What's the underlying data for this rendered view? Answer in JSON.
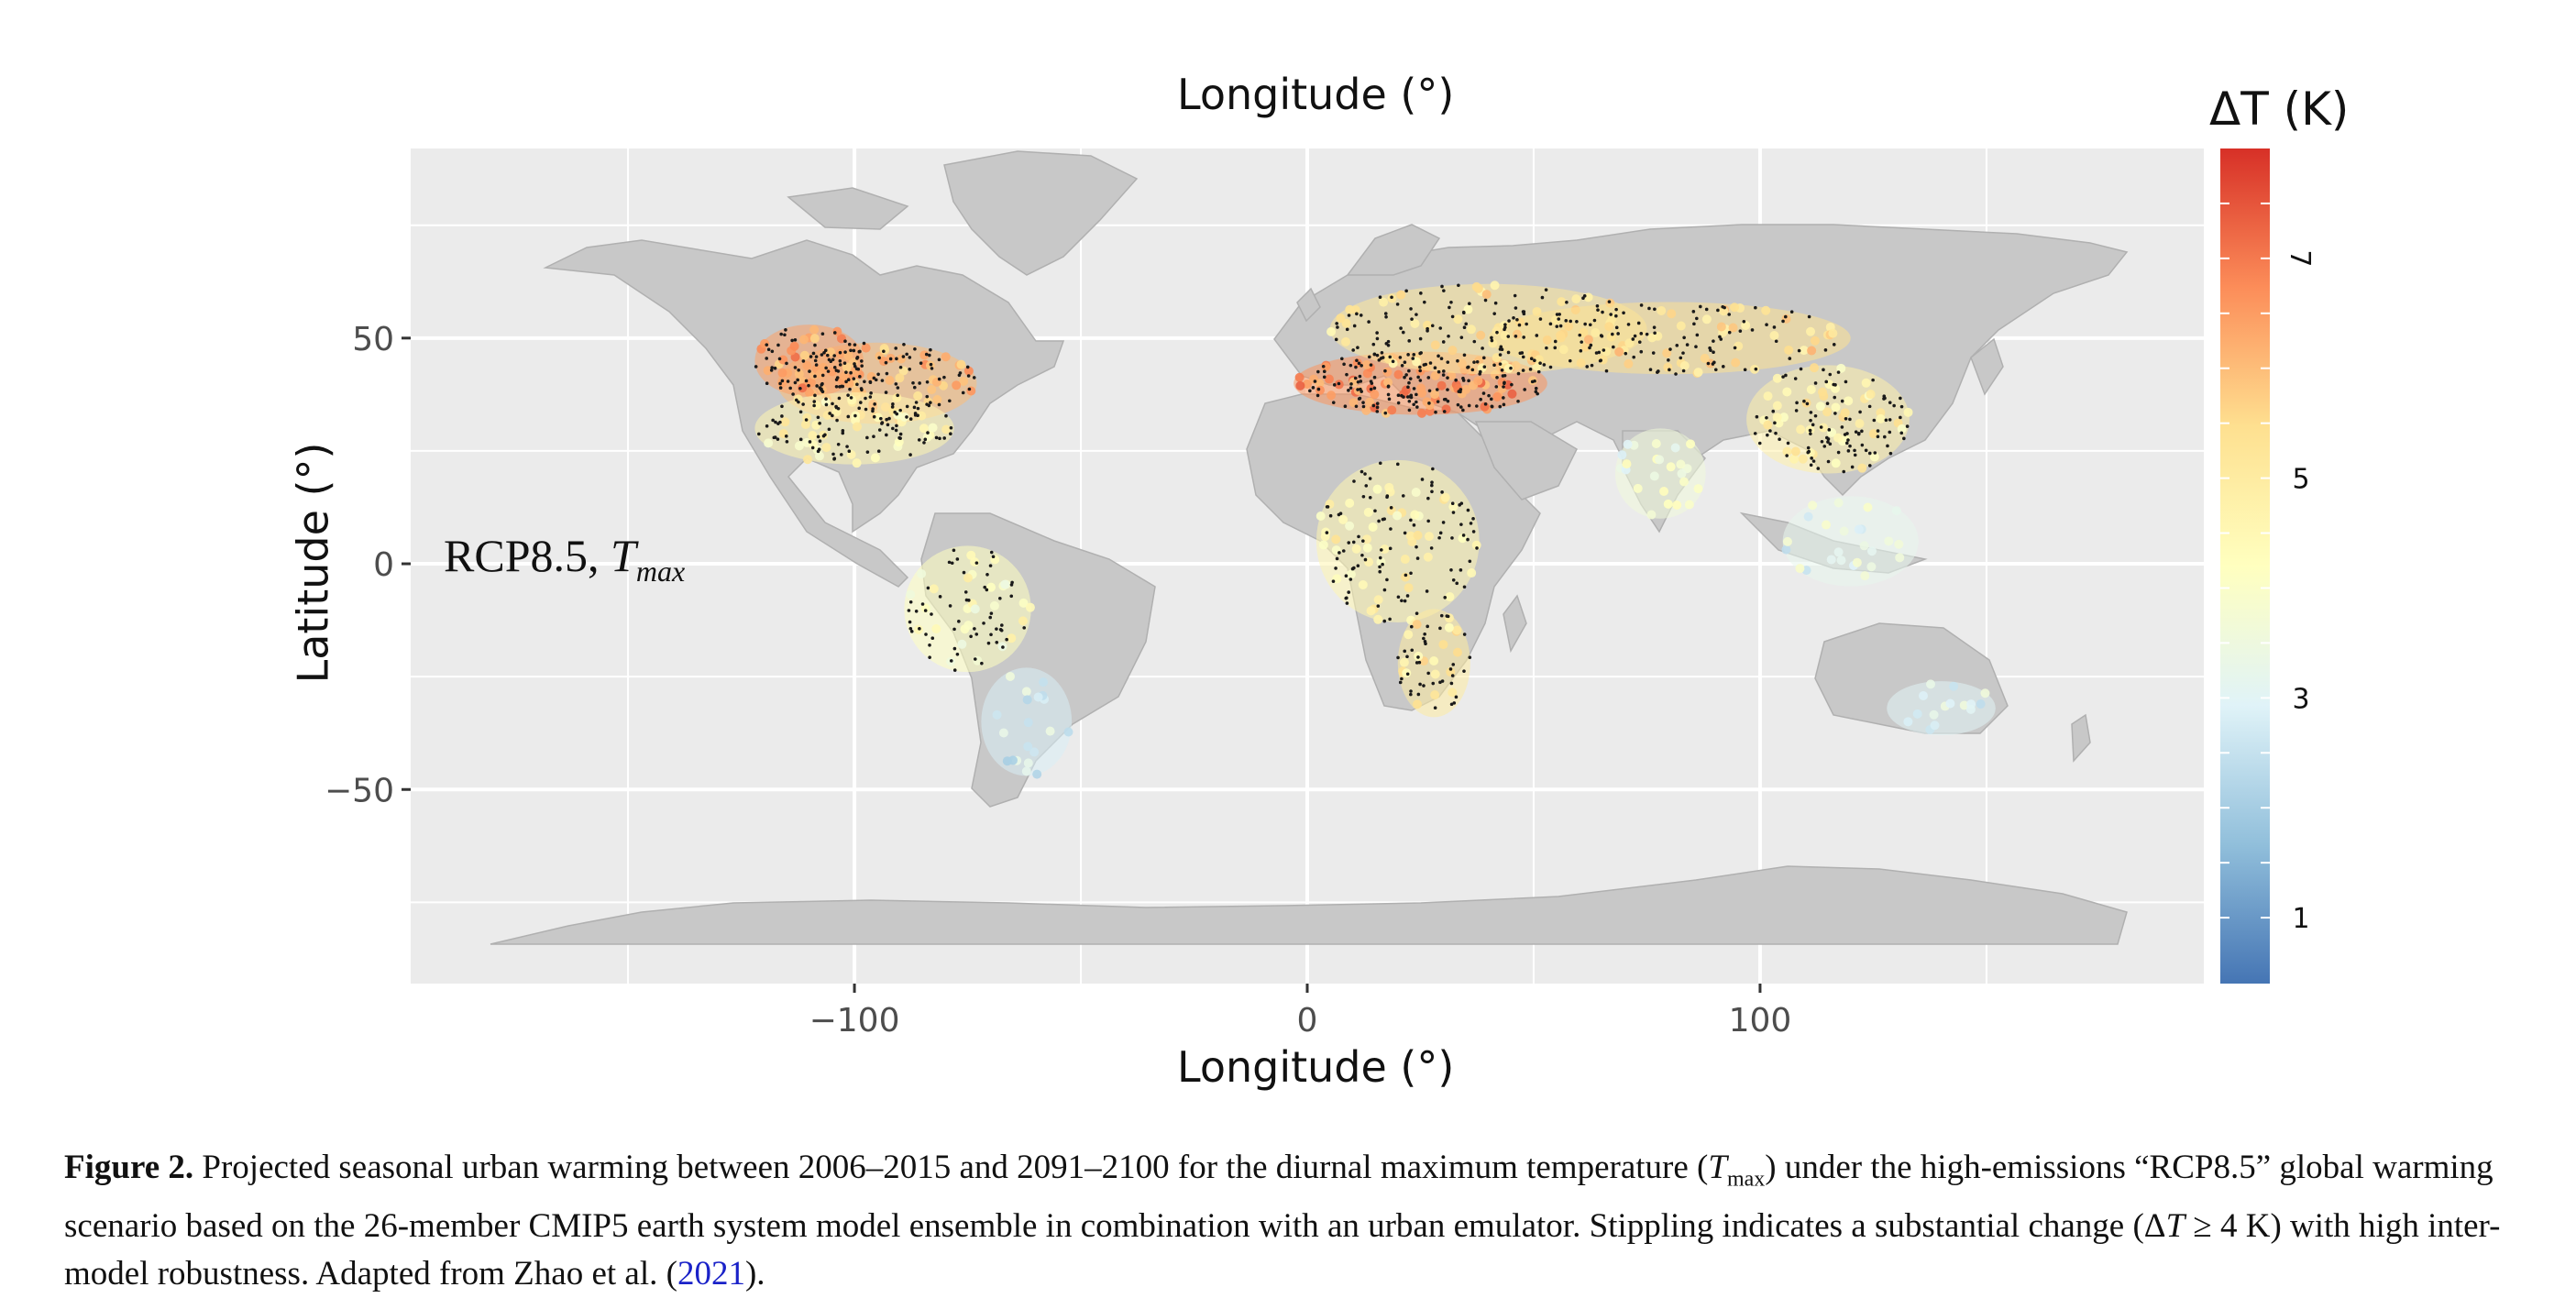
{
  "figure": {
    "top_axis_title": "Longitude (°)",
    "bottom_axis_title": "Longitude (°)",
    "y_axis_title": "Latitude (°)",
    "x_ticks": [
      {
        "value": -100,
        "label": "−100"
      },
      {
        "value": 0,
        "label": "0"
      },
      {
        "value": 100,
        "label": "100"
      }
    ],
    "y_ticks": [
      {
        "value": 50,
        "label": "50"
      },
      {
        "value": 0,
        "label": "0"
      },
      {
        "value": -50,
        "label": "−50"
      }
    ],
    "x_range": [
      -198,
      198
    ],
    "y_range": [
      -93,
      92
    ],
    "panel_label": {
      "scenario": "RCP8.5, ",
      "var": "T",
      "sub": "max"
    },
    "colorbar": {
      "title": "ΔT (K)",
      "range": [
        0.4,
        8.0
      ],
      "ticks": [
        {
          "value": 7,
          "label": "7"
        },
        {
          "value": 5,
          "label": "5"
        },
        {
          "value": 3,
          "label": "3"
        },
        {
          "value": 1,
          "label": "1"
        }
      ],
      "colors": [
        "#4575b4",
        "#91bfdb",
        "#e0f3f8",
        "#ffffbf",
        "#fee090",
        "#fc8d59",
        "#d73027"
      ]
    },
    "colors": {
      "panel_bg": "#ebebeb",
      "land": "#c8c8c8",
      "gridline": "#ffffff",
      "stipple": "#1a1a1a"
    }
  },
  "caption": {
    "label": "Figure 2.",
    "text1": " Projected seasonal urban warming between 2006–2015 and 2091–2100 for the diurnal maximum temperature (",
    "tvar": "T",
    "tsub": "max",
    "text2": ") under the high-emissions “RCP8.5” global warming scenario based on the 26-member CMIP5 earth system model ensemble in combination with an urban emulator. Stippling indicates a substantial change (Δ",
    "tvar2": "T",
    "text3": " ≥ 4 K) with high inter-model robustness. Adapted from Zhao et al. (",
    "ref": "2021",
    "text4": ")."
  }
}
